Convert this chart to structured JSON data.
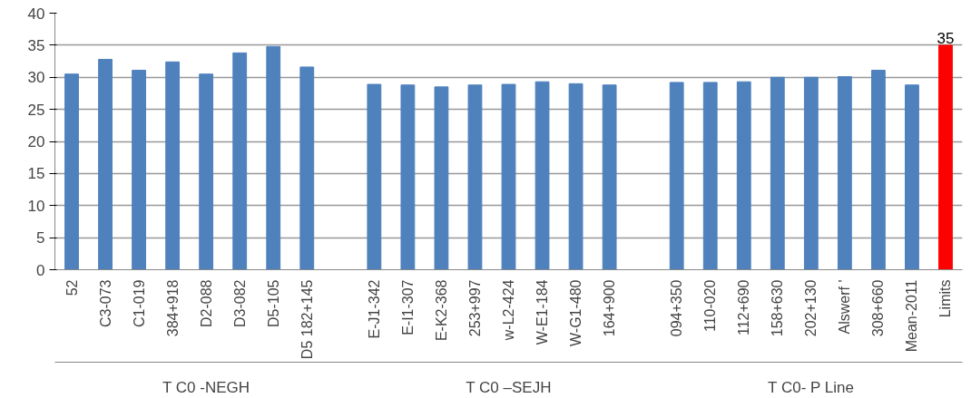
{
  "chart_data": {
    "type": "bar",
    "categories": [
      "52",
      "C3-073",
      "C1-019",
      "384+918",
      "D2-088",
      "D3-082",
      "D5-105",
      "D5 182+145",
      null,
      "E-J1-342",
      "E-I1-307",
      "E-K2-368",
      "253+997",
      "w-L2-424",
      "W-E1-184",
      "W-G1-480",
      "164+900",
      null,
      "094+350",
      "110-020",
      "112+690",
      "158+630",
      "202+130",
      "Alswerf '",
      "308+660",
      "Mean-2011",
      "Limits"
    ],
    "values": [
      30.5,
      32.8,
      31.1,
      32.4,
      30.5,
      33.8,
      34.8,
      31.6,
      null,
      28.9,
      28.8,
      28.5,
      28.8,
      28.9,
      29.3,
      29.0,
      28.8,
      null,
      29.2,
      29.2,
      29.3,
      30.0,
      30.0,
      30.1,
      31.1,
      28.8,
      35
    ],
    "colors": [
      "#4f81bd",
      "#4f81bd",
      "#4f81bd",
      "#4f81bd",
      "#4f81bd",
      "#4f81bd",
      "#4f81bd",
      "#4f81bd",
      null,
      "#4f81bd",
      "#4f81bd",
      "#4f81bd",
      "#4f81bd",
      "#4f81bd",
      "#4f81bd",
      "#4f81bd",
      "#4f81bd",
      null,
      "#4f81bd",
      "#4f81bd",
      "#4f81bd",
      "#4f81bd",
      "#4f81bd",
      "#4f81bd",
      "#4f81bd",
      "#4f81bd",
      "#ff0000"
    ],
    "value_labels": [
      null,
      null,
      null,
      null,
      null,
      null,
      null,
      null,
      null,
      null,
      null,
      null,
      null,
      null,
      null,
      null,
      null,
      null,
      null,
      null,
      null,
      null,
      null,
      null,
      null,
      null,
      "35"
    ],
    "annotations": [
      "T C0 -NEGH",
      "T C0 –SEJH",
      "T C0- P Line"
    ],
    "ylim": [
      0,
      40
    ],
    "yticks": [
      0,
      5,
      10,
      15,
      20,
      25,
      30,
      35,
      40
    ],
    "grid": "y"
  }
}
